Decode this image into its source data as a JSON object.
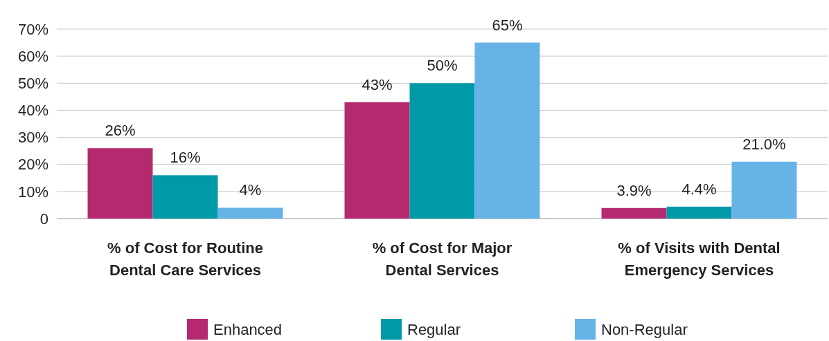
{
  "chart_data": {
    "type": "bar",
    "categories": [
      "% of Cost for Routine Dental Care Services",
      "% of Cost for Major Dental Services",
      "% of Visits with Dental Emergency Services"
    ],
    "series": [
      {
        "name": "Enhanced",
        "color": "#b5296f",
        "values": [
          26,
          43,
          3.9
        ],
        "value_labels": [
          "26%",
          "43%",
          "3.9%"
        ]
      },
      {
        "name": "Regular",
        "color": "#0099a8",
        "values": [
          16,
          50,
          4.4
        ],
        "value_labels": [
          "16%",
          "50%",
          "4.4%"
        ]
      },
      {
        "name": "Non-Regular",
        "color": "#66b3e8",
        "values": [
          4,
          65,
          21.0
        ],
        "value_labels": [
          "4%",
          "65%",
          "21.0%"
        ]
      }
    ],
    "ylim": [
      0,
      70
    ],
    "yticks": [
      {
        "value": 0,
        "label": "0"
      },
      {
        "value": 10,
        "label": "10%"
      },
      {
        "value": 20,
        "label": "20%"
      },
      {
        "value": 30,
        "label": "30%"
      },
      {
        "value": 40,
        "label": "40%"
      },
      {
        "value": 50,
        "label": "50%"
      },
      {
        "value": 60,
        "label": "60%"
      },
      {
        "value": 70,
        "label": "70%"
      }
    ],
    "grid": "y",
    "legend": "bottom"
  }
}
